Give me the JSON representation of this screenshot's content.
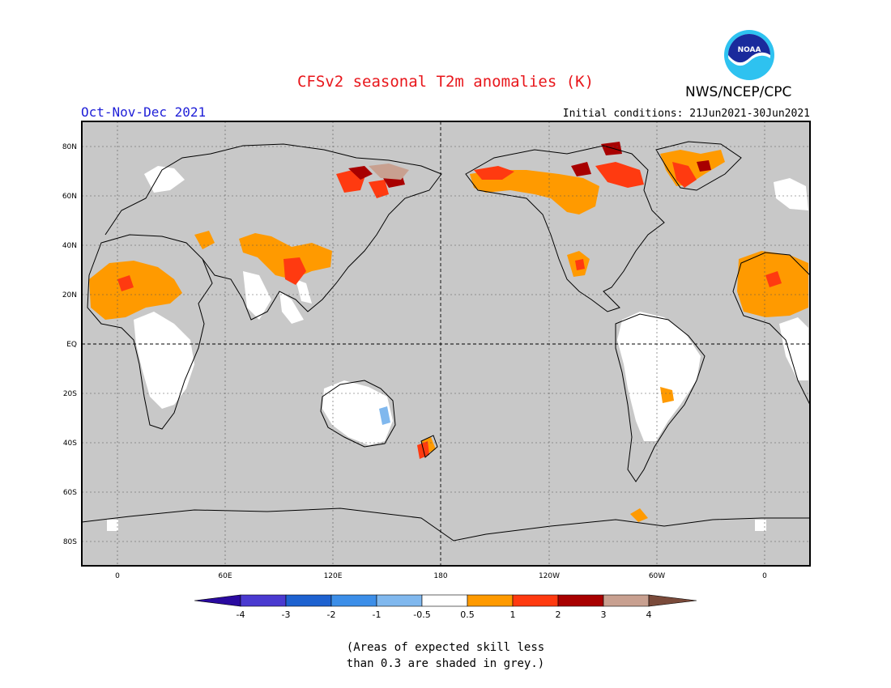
{
  "title": "CFSv2 seasonal T2m anomalies (K)",
  "agency": "NWS/NCEP/CPC",
  "logo_text": "NOAA",
  "period": "Oct-Nov-Dec 2021",
  "initial_conditions": "Initial conditions: 21Jun2021-30Jun2021",
  "lat_labels": [
    "80N",
    "60N",
    "40N",
    "20N",
    "EQ",
    "20S",
    "40S",
    "60S",
    "80S"
  ],
  "lon_labels": [
    "0",
    "60E",
    "120E",
    "180",
    "120W",
    "60W",
    "0"
  ],
  "colorbar": {
    "labels": [
      "-4",
      "-3",
      "-2",
      "-1",
      "-0.5",
      "0.5",
      "1",
      "2",
      "3",
      "4"
    ],
    "colors": [
      "#2a0aa0",
      "#4a3ad0",
      "#1e62d0",
      "#3c8ee8",
      "#80b8ee",
      "#ffffff",
      "#ff9a00",
      "#ff3a10",
      "#a80000",
      "#c8a090",
      "#7a4a3a"
    ]
  },
  "colors": {
    "no_skill_grey": "#c8c8c8",
    "title_red": "#e8161b",
    "period_blue": "#2020d8"
  },
  "note_line1": "(Areas of expected skill less",
  "note_line2": "than 0.3 are shaded in grey.)"
}
